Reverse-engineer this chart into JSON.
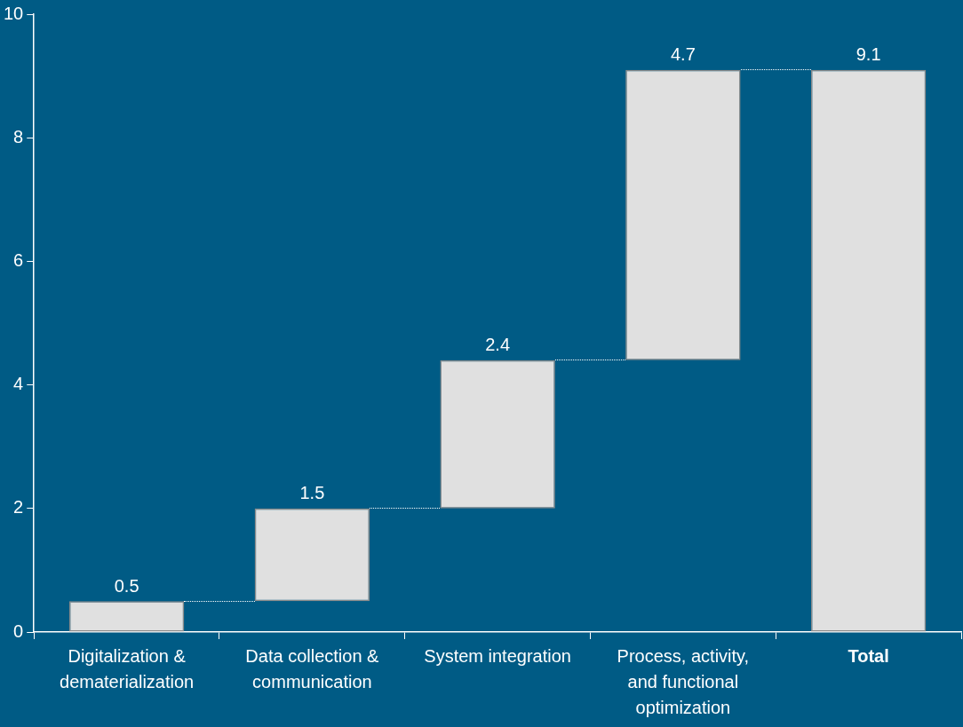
{
  "chart_data": {
    "type": "bar",
    "categories": [
      "Digitalization & dematerialization",
      "Data collection & communication",
      "System integration",
      "Process, activity, and functional optimization",
      "Total"
    ],
    "values": [
      0.5,
      1.5,
      2.4,
      4.7,
      9.1
    ],
    "base": [
      0,
      0.5,
      2.0,
      4.4,
      0
    ],
    "color": "#e0e0e0",
    "ylim": [
      0,
      10
    ],
    "yticks": [
      0,
      2,
      4,
      6,
      8,
      10
    ],
    "grid": false,
    "legend": false,
    "data_labels": true
  }
}
